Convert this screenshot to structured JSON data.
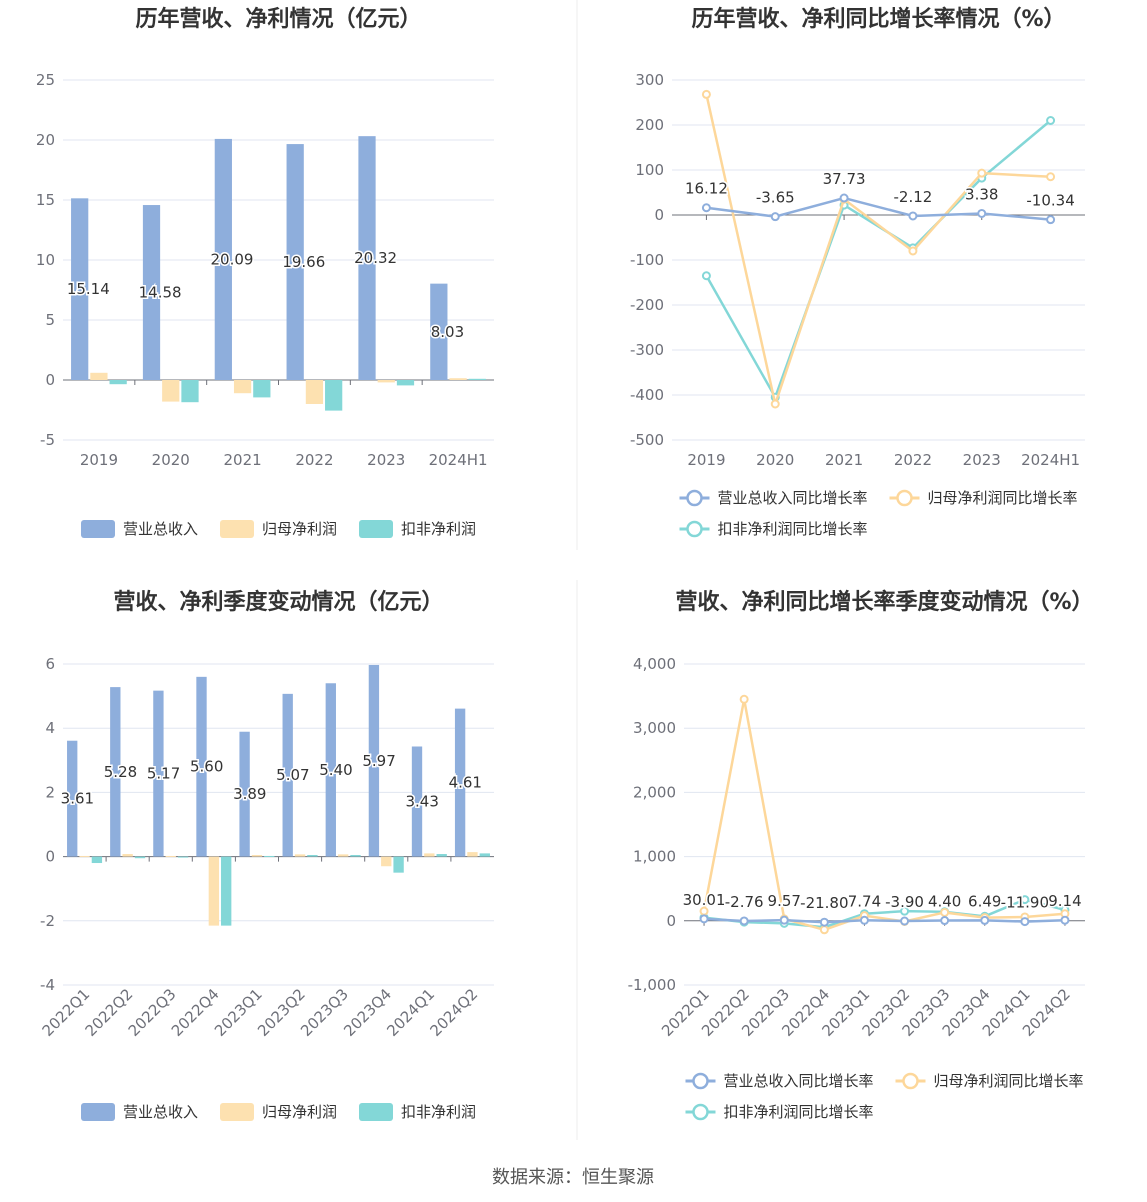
{
  "source": "数据来源：恒生聚源",
  "chart_data": [
    {
      "type": "bar",
      "title": "历年营收、净利情况（亿元）",
      "categories": [
        "2019",
        "2020",
        "2021",
        "2022",
        "2023",
        "2024H1"
      ],
      "ylim": [
        -5,
        25
      ],
      "yticks": [
        -5,
        0,
        5,
        10,
        15,
        20,
        25
      ],
      "grid": true,
      "legend_position": "bottom",
      "series": [
        {
          "name": "营业总收入",
          "color": "#8eaedc",
          "values": [
            15.14,
            14.58,
            20.09,
            19.66,
            20.32,
            8.03
          ],
          "labels": [
            "15.14",
            "14.58",
            "20.09",
            "19.66",
            "20.32",
            "8.03"
          ]
        },
        {
          "name": "归母净利润",
          "color": "#fde1b0",
          "values": [
            0.6,
            -1.8,
            -1.1,
            -2.0,
            -0.2,
            0.15
          ]
        },
        {
          "name": "扣非净利润",
          "color": "#83d7d7",
          "values": [
            -0.35,
            -1.85,
            -1.45,
            -2.55,
            -0.45,
            0.1
          ]
        }
      ]
    },
    {
      "type": "line",
      "title": "历年营收、净利同比增长率情况（%）",
      "categories": [
        "2019",
        "2020",
        "2021",
        "2022",
        "2023",
        "2024H1"
      ],
      "ylim": [
        -500,
        300
      ],
      "yticks": [
        -500,
        -400,
        -300,
        -200,
        -100,
        0,
        100,
        200,
        300
      ],
      "grid": true,
      "legend_position": "bottom",
      "series": [
        {
          "name": "营业总收入同比增长率",
          "color": "#8eaedc",
          "values": [
            16.12,
            -3.65,
            37.73,
            -2.12,
            3.38,
            -10.34
          ],
          "labels": [
            "16.12",
            "-3.65",
            "37.73",
            "-2.12",
            "3.38",
            "-10.34"
          ]
        },
        {
          "name": "归母净利润同比增长率",
          "color": "#fdd79a",
          "values": [
            268,
            -420,
            35,
            -80,
            93,
            85
          ]
        },
        {
          "name": "扣非净利润同比增长率",
          "color": "#83d7d7",
          "values": [
            -135,
            -405,
            22,
            -73,
            82,
            210
          ]
        }
      ]
    },
    {
      "type": "bar",
      "title": "营收、净利季度变动情况（亿元）",
      "categories": [
        "2022Q1",
        "2022Q2",
        "2022Q3",
        "2022Q4",
        "2023Q1",
        "2023Q2",
        "2023Q3",
        "2023Q4",
        "2024Q1",
        "2024Q2"
      ],
      "ylim": [
        -4,
        6
      ],
      "yticks": [
        -4,
        -2,
        0,
        2,
        4,
        6
      ],
      "grid": true,
      "legend_position": "bottom",
      "series": [
        {
          "name": "营业总收入",
          "color": "#8eaedc",
          "values": [
            3.61,
            5.28,
            5.17,
            5.6,
            3.89,
            5.07,
            5.4,
            5.97,
            3.43,
            4.61
          ],
          "labels": [
            "3.61",
            "5.28",
            "5.17",
            "5.60",
            "3.89",
            "5.07",
            "5.40",
            "5.97",
            "3.43",
            "4.61"
          ]
        },
        {
          "name": "归母净利润",
          "color": "#fde1b0",
          "values": [
            0.02,
            0.08,
            0.02,
            -2.15,
            0.05,
            0.07,
            0.07,
            -0.3,
            0.1,
            0.14
          ]
        },
        {
          "name": "扣非净利润",
          "color": "#83d7d7",
          "values": [
            -0.2,
            -0.05,
            -0.02,
            -2.15,
            0.02,
            0.05,
            0.05,
            -0.5,
            0.08,
            0.1
          ]
        }
      ]
    },
    {
      "type": "line",
      "title": "营收、净利同比增长率季度变动情况（%）",
      "categories": [
        "2022Q1",
        "2022Q2",
        "2022Q3",
        "2022Q4",
        "2023Q1",
        "2023Q2",
        "2023Q3",
        "2023Q4",
        "2024Q1",
        "2024Q2"
      ],
      "ylim": [
        -1000,
        4000
      ],
      "yticks": [
        -1000,
        0,
        1000,
        2000,
        3000,
        4000
      ],
      "ytick_labels": [
        "-1,000",
        "0",
        "1,000",
        "2,000",
        "3,000",
        "4,000"
      ],
      "grid": true,
      "legend_position": "bottom",
      "series": [
        {
          "name": "营业总收入同比增长率",
          "color": "#8eaedc",
          "values": [
            30.01,
            -2.76,
            9.57,
            -21.8,
            7.74,
            -3.9,
            4.4,
            6.49,
            -11.9,
            9.14
          ],
          "labels": [
            "30.01",
            "-2.76",
            "9.57",
            "-21.80",
            "7.74",
            "-3.90",
            "4.40",
            "6.49",
            "-11.90",
            "9.14"
          ]
        },
        {
          "name": "归母净利润同比增长率",
          "color": "#fdd79a",
          "values": [
            150,
            3450,
            30,
            -140,
            80,
            -10,
            130,
            50,
            60,
            110
          ]
        },
        {
          "name": "扣非净利润同比增长率",
          "color": "#83d7d7",
          "values": [
            50,
            -20,
            -40,
            -100,
            110,
            150,
            140,
            70,
            330,
            170
          ]
        }
      ]
    }
  ]
}
